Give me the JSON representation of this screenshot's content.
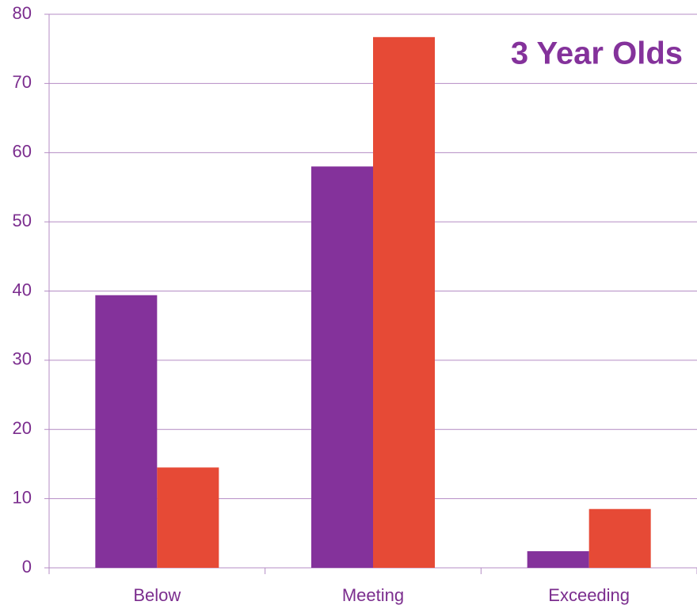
{
  "chart_data": {
    "type": "bar",
    "title": "3 Year Olds",
    "categories": [
      "Below",
      "Meeting",
      "Exceeding"
    ],
    "series": [
      {
        "color": "#84329b",
        "values": [
          39.4,
          58,
          2.4
        ]
      },
      {
        "color": "#e64a36",
        "values": [
          14.5,
          76.7,
          8.5
        ]
      }
    ],
    "ylim": [
      0,
      80
    ],
    "yticks": [
      0,
      10,
      20,
      30,
      40,
      50,
      60,
      70,
      80
    ],
    "grid": true
  }
}
